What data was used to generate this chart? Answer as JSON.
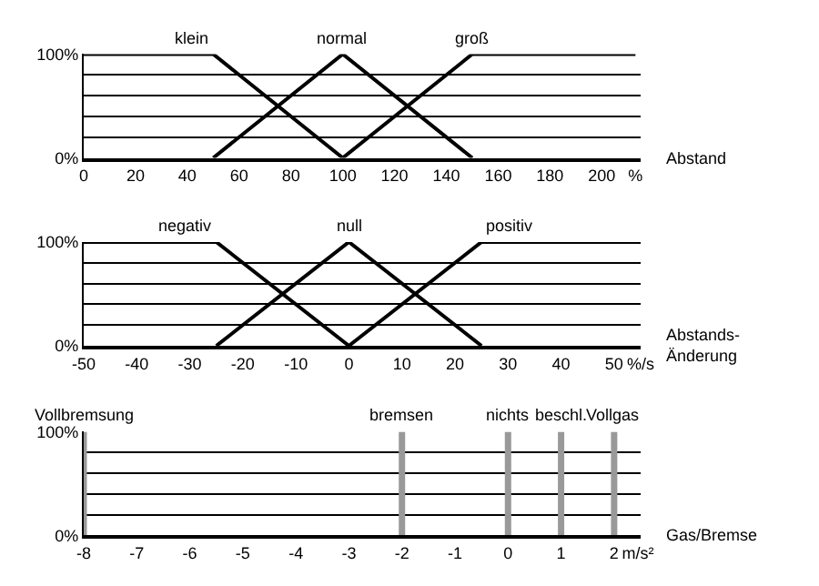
{
  "chart_data": [
    {
      "type": "line",
      "xlabel": "Abstand",
      "xlim": [
        0,
        215
      ],
      "xticks": [
        0,
        20,
        40,
        60,
        80,
        100,
        120,
        140,
        160,
        180,
        200,
        {
          "value": 213,
          "label": "%"
        }
      ],
      "ylim": [
        0,
        100
      ],
      "yticks": [
        {
          "value": 0,
          "label": "0%"
        },
        {
          "value": 20,
          "label": null
        },
        {
          "value": 40,
          "label": null
        },
        {
          "value": 60,
          "label": null
        },
        {
          "value": 80,
          "label": null
        },
        {
          "value": 100,
          "label": "100%"
        }
      ],
      "grid": "y",
      "series": [
        {
          "name": "klein",
          "color": "#000000",
          "x": [
            0,
            50,
            100
          ],
          "values": [
            100,
            100,
            0
          ]
        },
        {
          "name": "normal",
          "color": "#000000",
          "x": [
            50,
            100,
            150
          ],
          "values": [
            0,
            100,
            0
          ]
        },
        {
          "name": "groß",
          "color": "#000000",
          "x": [
            100,
            150,
            213
          ],
          "values": [
            0,
            100,
            100
          ]
        }
      ]
    },
    {
      "type": "line",
      "xlabel": "Abstands-\nÄnderung",
      "xlim": [
        -50,
        55
      ],
      "xticks": [
        -50,
        -40,
        -30,
        -20,
        -10,
        0,
        10,
        20,
        30,
        40,
        50,
        {
          "value": 55,
          "label": "%/s"
        }
      ],
      "ylim": [
        0,
        100
      ],
      "yticks": [
        {
          "value": 0,
          "label": "0%"
        },
        {
          "value": 20,
          "label": null
        },
        {
          "value": 40,
          "label": null
        },
        {
          "value": 60,
          "label": null
        },
        {
          "value": 80,
          "label": null
        },
        {
          "value": 100,
          "label": "100%"
        }
      ],
      "grid": "y",
      "series": [
        {
          "name": "negativ",
          "color": "#000000",
          "x": [
            -50,
            -25,
            0
          ],
          "values": [
            100,
            100,
            0
          ]
        },
        {
          "name": "null",
          "color": "#000000",
          "x": [
            -25,
            0,
            25
          ],
          "values": [
            0,
            100,
            0
          ]
        },
        {
          "name": "positiv",
          "color": "#000000",
          "x": [
            0,
            25,
            55
          ],
          "values": [
            0,
            100,
            100
          ]
        }
      ]
    },
    {
      "type": "bar",
      "xlabel": "Gas/Bremse",
      "xlim": [
        -8,
        2.5
      ],
      "xticks": [
        -8,
        -7,
        -6,
        -5,
        -4,
        -3,
        -2,
        -1,
        0,
        1,
        2,
        {
          "value": 2.45,
          "label": "m/s²"
        }
      ],
      "ylim": [
        0,
        100
      ],
      "yticks": [
        {
          "value": 0,
          "label": "0%"
        },
        {
          "value": 20,
          "label": null
        },
        {
          "value": 40,
          "label": null
        },
        {
          "value": 60,
          "label": null
        },
        {
          "value": 80,
          "label": null
        },
        {
          "value": 100,
          "label": "100%"
        }
      ],
      "grid": "y",
      "series": [
        {
          "name": "Vollbremsung",
          "color": "#999999",
          "x": [
            -8
          ],
          "values": [
            100
          ]
        },
        {
          "name": "bremsen",
          "color": "#999999",
          "x": [
            -2
          ],
          "values": [
            100
          ]
        },
        {
          "name": "nichts",
          "color": "#999999",
          "x": [
            0
          ],
          "values": [
            100
          ]
        },
        {
          "name": "beschl.",
          "color": "#999999",
          "x": [
            1
          ],
          "values": [
            100
          ]
        },
        {
          "name": "Vollgas",
          "color": "#999999",
          "x": [
            2
          ],
          "values": [
            100
          ]
        }
      ]
    }
  ]
}
